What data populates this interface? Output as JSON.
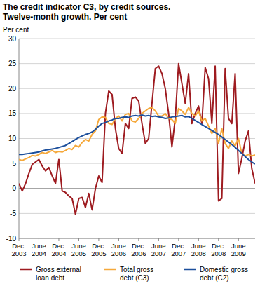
{
  "chart_data": {
    "type": "line",
    "title": "The credit indicator C3, by credit sources. Twelve-month growth. Per cent",
    "y_label": "Per cent",
    "categories": [
      "Dec. 2003",
      null,
      null,
      null,
      null,
      null,
      "June 2004",
      null,
      null,
      null,
      null,
      null,
      "Dec. 2004",
      null,
      null,
      null,
      null,
      null,
      "June 2005",
      null,
      null,
      null,
      null,
      null,
      "Dec. 2005",
      null,
      null,
      null,
      null,
      null,
      "June 2006",
      null,
      null,
      null,
      null,
      null,
      "Dec. 2006",
      null,
      null,
      null,
      null,
      null,
      "June 2007",
      null,
      null,
      null,
      null,
      null,
      "Dec. 2007",
      null,
      null,
      null,
      null,
      null,
      "June 2008",
      null,
      null,
      null,
      null,
      null,
      "Dec. 2008",
      null,
      null,
      null,
      null,
      null,
      "June 2009",
      null,
      null,
      null,
      null,
      null
    ],
    "series": [
      {
        "name": "Gross external loan debt",
        "color": "#9e1b20",
        "values": [
          1.0,
          -0.5,
          1.0,
          3.0,
          4.8,
          5.3,
          5.8,
          4.5,
          3.5,
          4.2,
          2.5,
          1.0,
          5.8,
          -0.5,
          -0.8,
          -1.5,
          -2.0,
          -5.2,
          -2.0,
          -1.8,
          -3.8,
          -1.0,
          -4.3,
          0.0,
          2.5,
          1.2,
          15.0,
          19.5,
          18.8,
          12.0,
          8.0,
          7.0,
          13.0,
          12.0,
          18.0,
          18.3,
          17.5,
          13.0,
          9.0,
          10.0,
          17.0,
          24.0,
          24.5,
          23.0,
          20.0,
          15.0,
          8.3,
          14.0,
          25.0,
          21.0,
          17.0,
          23.0,
          13.0,
          15.0,
          16.5,
          13.0,
          24.2,
          22.0,
          13.0,
          24.5,
          -2.5,
          -2.0,
          24.0,
          14.0,
          13.0,
          23.0,
          3.0,
          6.0,
          9.5,
          11.5,
          4.0,
          1.0
        ]
      },
      {
        "name": "Total gross debt (C3)",
        "color": "#f5a93c",
        "values": [
          5.8,
          5.6,
          5.9,
          6.2,
          6.6,
          6.5,
          6.8,
          7.2,
          7.0,
          7.3,
          7.6,
          7.2,
          7.4,
          7.3,
          7.6,
          8.0,
          7.8,
          8.6,
          8.3,
          9.2,
          9.8,
          9.5,
          10.8,
          11.5,
          13.8,
          14.3,
          14.2,
          13.0,
          12.8,
          14.0,
          14.5,
          13.5,
          14.8,
          15.0,
          13.5,
          13.3,
          14.0,
          15.0,
          15.5,
          16.0,
          16.2,
          15.5,
          14.5,
          14.5,
          15.0,
          14.0,
          13.8,
          13.0,
          16.0,
          15.5,
          14.8,
          16.2,
          15.0,
          14.5,
          15.5,
          13.5,
          14.0,
          12.5,
          11.0,
          12.0,
          9.0,
          12.0,
          9.0,
          8.0,
          9.5,
          8.5,
          10.0,
          7.0,
          6.5,
          6.8,
          6.5,
          6.7
        ]
      },
      {
        "name": "Domestic gross debt (C2)",
        "color": "#1c4f9c",
        "values": [
          6.8,
          6.8,
          6.9,
          7.0,
          7.1,
          7.2,
          7.3,
          7.5,
          7.7,
          7.8,
          7.9,
          8.0,
          8.2,
          8.4,
          8.6,
          9.0,
          9.4,
          9.8,
          10.2,
          10.5,
          10.8,
          11.0,
          11.3,
          11.8,
          12.5,
          13.0,
          13.2,
          13.5,
          13.7,
          14.0,
          14.0,
          14.2,
          14.3,
          14.2,
          14.5,
          14.6,
          14.5,
          14.7,
          14.5,
          14.6,
          14.4,
          14.5,
          14.3,
          14.2,
          14.0,
          14.1,
          14.3,
          14.4,
          14.5,
          14.6,
          14.3,
          14.4,
          14.0,
          13.6,
          13.2,
          12.8,
          12.4,
          12.0,
          11.6,
          11.2,
          10.8,
          10.3,
          9.8,
          9.3,
          8.8,
          8.2,
          7.6,
          7.0,
          6.4,
          5.8,
          5.3,
          4.9
        ]
      }
    ],
    "ylim": [
      -10,
      30
    ],
    "yticks": [
      -10,
      -5,
      0,
      5,
      10,
      15,
      20,
      25,
      30
    ],
    "grid": true,
    "legend": "bottom"
  }
}
